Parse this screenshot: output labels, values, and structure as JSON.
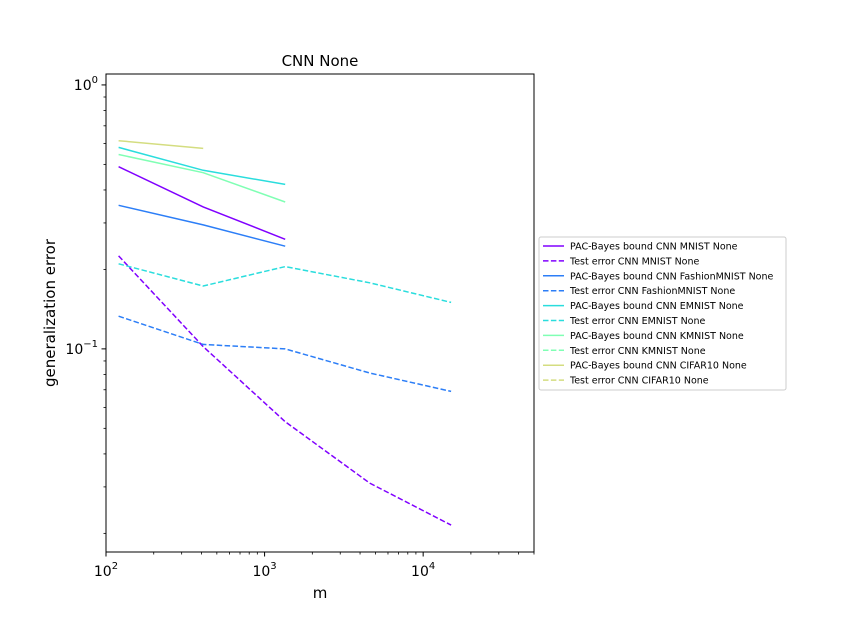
{
  "chart_data": {
    "type": "line",
    "title": "CNN None",
    "xlabel": "m",
    "ylabel": "generalization error",
    "xscale": "log",
    "yscale": "log",
    "xlim": [
      100,
      50000
    ],
    "ylim": [
      0.017,
      1.1
    ],
    "xticks": [
      {
        "value": 100,
        "base": "10",
        "exp": "2"
      },
      {
        "value": 1000,
        "base": "10",
        "exp": "3"
      },
      {
        "value": 10000,
        "base": "10",
        "exp": "4"
      }
    ],
    "yticks": [
      {
        "value": 1,
        "base": "10",
        "exp": "0"
      },
      {
        "value": 0.1,
        "base": "10",
        "exp": "−1"
      }
    ],
    "grid": false,
    "legend_position": "right",
    "series": [
      {
        "name": "PAC-Bayes bound CNN MNIST None",
        "color": "#8000ff",
        "dash": "solid",
        "x": [
          120,
          410,
          1350
        ],
        "y": [
          0.49,
          0.345,
          0.26
        ]
      },
      {
        "name": "Test error CNN MNIST None",
        "color": "#8000ff",
        "dash": "dashed",
        "x": [
          120,
          410,
          1350,
          4600,
          15000
        ],
        "y": [
          0.225,
          0.102,
          0.053,
          0.031,
          0.0215
        ]
      },
      {
        "name": "PAC-Bayes bound CNN FashionMNIST None",
        "color": "#2c7ef7",
        "dash": "solid",
        "x": [
          120,
          410,
          1350
        ],
        "y": [
          0.35,
          0.295,
          0.245
        ]
      },
      {
        "name": "Test error CNN FashionMNIST None",
        "color": "#2c7ef7",
        "dash": "dashed",
        "x": [
          120,
          410,
          1350,
          4600,
          15000
        ],
        "y": [
          0.133,
          0.104,
          0.1,
          0.081,
          0.069
        ]
      },
      {
        "name": "PAC-Bayes bound CNN EMNIST None",
        "color": "#2adddd",
        "dash": "solid",
        "x": [
          120,
          410,
          1350
        ],
        "y": [
          0.58,
          0.475,
          0.42
        ]
      },
      {
        "name": "Test error CNN EMNIST None",
        "color": "#2adddd",
        "dash": "dashed",
        "x": [
          120,
          410,
          1350,
          4600,
          15000
        ],
        "y": [
          0.21,
          0.173,
          0.205,
          0.178,
          0.15
        ]
      },
      {
        "name": "PAC-Bayes bound CNN KMNIST None",
        "color": "#80ffb4",
        "dash": "solid",
        "x": [
          120,
          410,
          1350
        ],
        "y": [
          0.545,
          0.465,
          0.36
        ]
      },
      {
        "name": "Test error CNN KMNIST None",
        "color": "#80ffb4",
        "dash": "dashed",
        "x": [],
        "y": []
      },
      {
        "name": "PAC-Bayes bound CNN CIFAR10 None",
        "color": "#d4dd80",
        "dash": "solid",
        "x": [
          120,
          410
        ],
        "y": [
          0.615,
          0.575
        ]
      },
      {
        "name": "Test error CNN CIFAR10 None",
        "color": "#d4dd80",
        "dash": "dashed",
        "x": [],
        "y": []
      }
    ]
  }
}
